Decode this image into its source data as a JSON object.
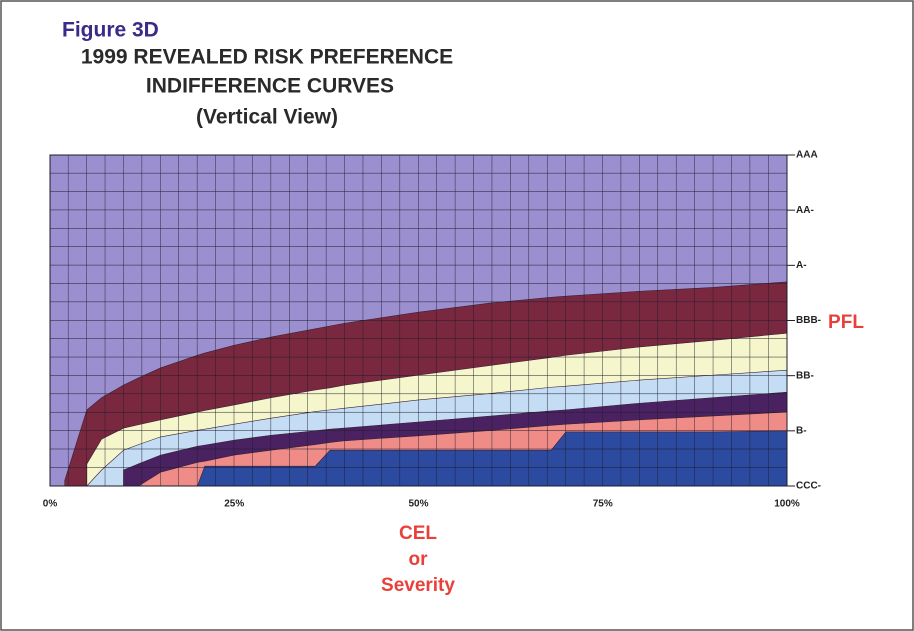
{
  "chart_data": {
    "type": "area",
    "figure_label": "Figure 3D",
    "title": [
      "1999 REVEALED RISK PREFERENCE",
      "INDIFFERENCE CURVES"
    ],
    "subtitle": "(Vertical View)",
    "x_label": [
      "CEL",
      "or",
      "Severity"
    ],
    "y_label": "PFL",
    "plot_background": "#9b8fd0",
    "grid": true,
    "x": [
      0,
      2,
      5,
      7,
      10,
      12,
      15,
      20,
      21,
      25,
      30,
      36,
      38,
      40,
      50,
      60,
      68,
      70,
      80,
      90,
      100
    ],
    "xlim": [
      0,
      100
    ],
    "xticks": [
      {
        "value": 0,
        "label": "0%"
      },
      {
        "value": 25,
        "label": "25%"
      },
      {
        "value": 50,
        "label": "50%"
      },
      {
        "value": 75,
        "label": "75%"
      },
      {
        "value": 100,
        "label": "100%"
      }
    ],
    "ylim": [
      0,
      6
    ],
    "yticks": [
      {
        "value": 0,
        "label": "CCC-"
      },
      {
        "value": 1,
        "label": "B-"
      },
      {
        "value": 2,
        "label": "BB-"
      },
      {
        "value": 3,
        "label": "BBB-"
      },
      {
        "value": 4,
        "label": "A-"
      },
      {
        "value": 5,
        "label": "AA-"
      },
      {
        "value": 6,
        "label": "AAA"
      }
    ],
    "series": [
      {
        "color": "#7a2840",
        "values": [
          null,
          0.1,
          1.38,
          1.6,
          1.83,
          1.96,
          2.14,
          2.37,
          2.41,
          2.55,
          2.7,
          2.85,
          2.9,
          2.95,
          3.15,
          3.32,
          3.42,
          3.44,
          3.53,
          3.6,
          3.7
        ]
      },
      {
        "color": "#f6f6cc",
        "values": [
          null,
          null,
          0.4,
          0.85,
          1.05,
          1.11,
          1.2,
          1.34,
          1.37,
          1.47,
          1.6,
          1.74,
          1.78,
          1.83,
          2.01,
          2.19,
          2.33,
          2.37,
          2.52,
          2.64,
          2.77
        ]
      },
      {
        "color": "#c4dcf4",
        "values": [
          null,
          null,
          0,
          0.29,
          0.65,
          0.75,
          0.89,
          1.01,
          1.03,
          1.12,
          1.23,
          1.35,
          1.38,
          1.41,
          1.56,
          1.68,
          1.79,
          1.81,
          1.92,
          2.01,
          2.1
        ]
      },
      {
        "color": "#4a2262",
        "values": [
          null,
          null,
          null,
          null,
          0.29,
          0.4,
          0.56,
          0.72,
          0.74,
          0.83,
          0.92,
          1.0,
          1.03,
          1.05,
          1.16,
          1.27,
          1.36,
          1.38,
          1.5,
          1.6,
          1.7
        ]
      },
      {
        "color": "#f08c88",
        "values": [
          null,
          null,
          null,
          null,
          null,
          0,
          0.25,
          0.43,
          0.45,
          0.56,
          0.65,
          0.75,
          0.79,
          0.82,
          0.91,
          1.01,
          1.1,
          1.12,
          1.2,
          1.27,
          1.34
        ]
      },
      {
        "color": "#2c4aa0",
        "values": [
          null,
          null,
          null,
          null,
          null,
          null,
          null,
          0,
          0.36,
          0.36,
          0.36,
          0.36,
          0.65,
          0.65,
          0.65,
          0.65,
          0.65,
          0.98,
          0.98,
          0.98,
          1.0
        ]
      }
    ]
  }
}
